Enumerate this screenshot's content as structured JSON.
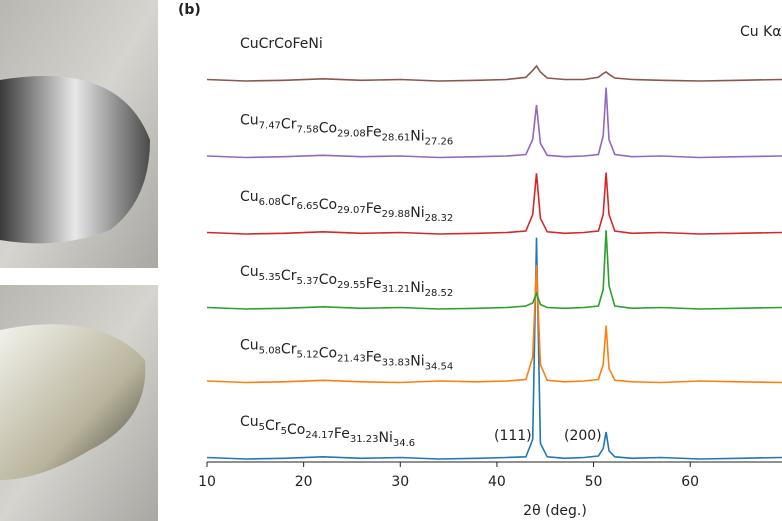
{
  "chart_data": {
    "type": "line",
    "panel_label": "(b)",
    "xlabel": "2θ (deg.)",
    "annotations": [
      "Cu Kα",
      "(111)",
      "(200)"
    ],
    "xlim": [
      10,
      69.5
    ],
    "xticks": [
      10,
      20,
      30,
      40,
      50,
      60
    ],
    "ylim": [
      0,
      5.8
    ],
    "x": [
      10,
      14,
      18,
      22,
      26,
      30,
      34,
      38,
      41,
      43,
      43.7,
      44.1,
      44.5,
      45.2,
      47,
      49,
      50.5,
      51.0,
      51.3,
      51.6,
      52.2,
      54,
      57,
      61,
      65,
      69.5
    ],
    "series": [
      {
        "name": "Cu5Cr5Co24.17Fe31.23Ni34.6",
        "color": "#1f77b4",
        "values": [
          0.06,
          0.04,
          0.05,
          0.07,
          0.05,
          0.06,
          0.04,
          0.05,
          0.06,
          0.07,
          0.3,
          2.99,
          0.25,
          0.07,
          0.05,
          0.06,
          0.08,
          0.18,
          0.4,
          0.15,
          0.07,
          0.05,
          0.06,
          0.04,
          0.05,
          0.06
        ]
      },
      {
        "name": "Cu5.08Cr5.12Co21.43Fe33.83Ni34.54",
        "color": "#ff7f0e",
        "values": [
          1.08,
          1.06,
          1.07,
          1.09,
          1.07,
          1.06,
          1.08,
          1.07,
          1.08,
          1.1,
          1.4,
          2.63,
          1.3,
          1.09,
          1.07,
          1.08,
          1.1,
          1.3,
          1.82,
          1.25,
          1.09,
          1.07,
          1.06,
          1.08,
          1.07,
          1.06
        ]
      },
      {
        "name": "Cu5.35Cr5.37Co29.55Fe31.21Ni28.52",
        "color": "#2ca02c",
        "values": [
          2.06,
          2.04,
          2.05,
          2.07,
          2.05,
          2.06,
          2.04,
          2.05,
          2.06,
          2.08,
          2.12,
          2.25,
          2.1,
          2.06,
          2.05,
          2.06,
          2.08,
          2.3,
          3.09,
          2.35,
          2.08,
          2.05,
          2.06,
          2.04,
          2.05,
          2.06
        ]
      },
      {
        "name": "Cu6.08Cr6.65Co29.07Fe29.88Ni28.32",
        "color": "#d62728",
        "values": [
          3.06,
          3.04,
          3.05,
          3.07,
          3.05,
          3.06,
          3.04,
          3.05,
          3.06,
          3.08,
          3.3,
          3.85,
          3.25,
          3.07,
          3.05,
          3.06,
          3.08,
          3.3,
          3.86,
          3.3,
          3.08,
          3.05,
          3.06,
          3.04,
          3.05,
          3.06
        ]
      },
      {
        "name": "Cu7.47Cr7.58Co29.08Fe28.61Ni27.26",
        "color": "#9467bd",
        "values": [
          4.08,
          4.06,
          4.07,
          4.09,
          4.07,
          4.08,
          4.06,
          4.07,
          4.08,
          4.1,
          4.3,
          4.76,
          4.25,
          4.09,
          4.07,
          4.08,
          4.1,
          4.35,
          4.99,
          4.3,
          4.1,
          4.07,
          4.08,
          4.06,
          4.07,
          4.08
        ]
      },
      {
        "name": "CuCrCoFeNi",
        "color": "#8c564b",
        "values": [
          5.1,
          5.08,
          5.09,
          5.11,
          5.09,
          5.1,
          5.08,
          5.09,
          5.1,
          5.13,
          5.22,
          5.28,
          5.2,
          5.12,
          5.1,
          5.1,
          5.13,
          5.18,
          5.2,
          5.17,
          5.12,
          5.1,
          5.09,
          5.08,
          5.09,
          5.1
        ]
      }
    ]
  }
}
